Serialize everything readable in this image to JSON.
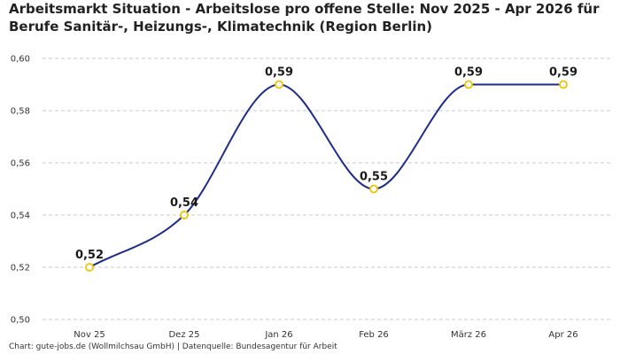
{
  "chart_data": {
    "type": "line",
    "title": "Arbeitsmarkt Situation - Arbeitslose pro offene Stelle: Nov 2025 - Apr 2026 für Berufe Sanitär-, Heizungs-, Klimatechnik (Region Berlin)",
    "categories": [
      "Nov 25",
      "Dez 25",
      "Jan 26",
      "Feb 26",
      "März 26",
      "Apr 26"
    ],
    "values": [
      0.52,
      0.54,
      0.59,
      0.55,
      0.59,
      0.59
    ],
    "data_labels": [
      "0,52",
      "0,54",
      "0,59",
      "0,55",
      "0,59",
      "0,59"
    ],
    "y_ticks": [
      0.5,
      0.52,
      0.54,
      0.56,
      0.58,
      0.6
    ],
    "y_tick_labels": [
      "0,50",
      "0,52",
      "0,54",
      "0,56",
      "0,58",
      "0,60"
    ],
    "ylim": [
      0.5,
      0.6
    ],
    "xlabel": "",
    "ylabel": "",
    "grid": true,
    "legend": "none",
    "line_color": "#1f2d8a",
    "marker_color": "#f2c200"
  },
  "footer": "Chart: gute-jobs.de (Wollmilchsau GmbH) | Datenquelle: Bundesagentur für Arbeit"
}
